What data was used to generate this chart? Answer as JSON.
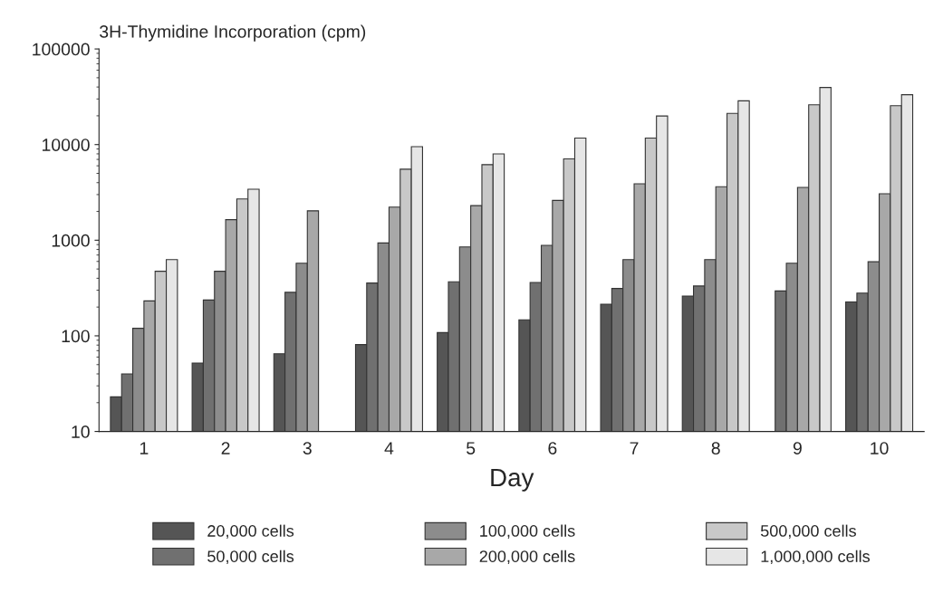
{
  "chart_data": {
    "type": "bar",
    "ylabel": "3H-Thymidine Incorporation (cpm)",
    "xlabel": "Day",
    "categories": [
      "1",
      "2",
      "3",
      "4",
      "5",
      "6",
      "7",
      "8",
      "9",
      "10"
    ],
    "series": [
      {
        "name": "20,000 cells",
        "color": "#555555",
        "values": [
          23,
          52,
          65,
          81,
          108,
          147,
          214,
          261,
          null,
          226
        ]
      },
      {
        "name": "50,000 cells",
        "color": "#707070",
        "values": [
          40,
          237,
          285,
          357,
          367,
          362,
          313,
          332,
          295,
          280
        ]
      },
      {
        "name": "100,000 cells",
        "color": "#8c8c8c",
        "values": [
          120,
          474,
          574,
          936,
          851,
          883,
          627,
          627,
          574,
          595
        ]
      },
      {
        "name": "200,000 cells",
        "color": "#a8a8a8",
        "values": [
          232,
          1640,
          2030,
          2220,
          2300,
          2610,
          3890,
          3620,
          3570,
          3060
        ]
      },
      {
        "name": "500,000 cells",
        "color": "#c8c8c8",
        "values": [
          474,
          2700,
          null,
          5530,
          6170,
          7080,
          11700,
          21200,
          26100,
          25500
        ]
      },
      {
        "name": "1,000,000 cells",
        "color": "#e6e6e6",
        "values": [
          627,
          3410,
          null,
          9510,
          7980,
          11700,
          19900,
          28700,
          39600,
          33200
        ]
      }
    ],
    "log": true,
    "ylim": [
      10,
      100000
    ],
    "yticks": [
      10,
      100,
      1000,
      10000,
      100000
    ],
    "grid": false,
    "legend": "bottom"
  }
}
